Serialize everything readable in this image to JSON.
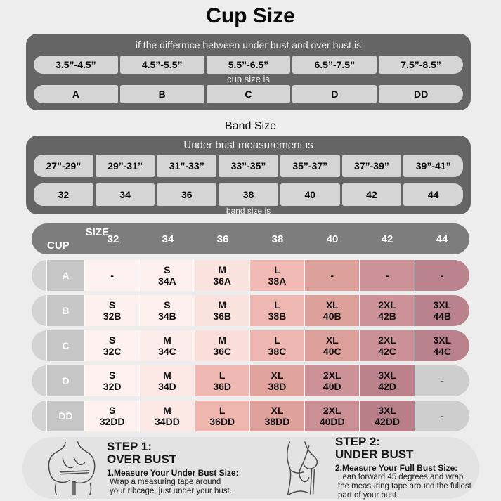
{
  "title": "Cup Size",
  "colors": {
    "page_bg": "#ededed",
    "container_bg": "#656565",
    "matrix_header_bg": "#7d7d7d",
    "light_cell_bg": "#d5d5d5",
    "row_label_bg": "#c6c6c6",
    "row_cap_bg": "#d3d3d3",
    "panel_bg": "#e3e3e3"
  },
  "cup_table": {
    "header": "if the differmce between under bust and over bust is",
    "ranges": [
      "3.5”-4.5”",
      "4.5”-5.5”",
      "5.5”-6.5”",
      "6.5”-7.5”",
      "7.5”-8.5”"
    ],
    "mid_label": "cup size is",
    "cups": [
      "A",
      "B",
      "C",
      "D",
      "DD"
    ]
  },
  "band_table": {
    "title": "Band Size",
    "header": "Under bust measurement is",
    "ranges": [
      "27”-29”",
      "29”-31”",
      "31”-33”",
      "33”-35”",
      "35”-37”",
      "37”-39”",
      "39”-41”"
    ],
    "bands": [
      "32",
      "34",
      "36",
      "38",
      "40",
      "42",
      "44"
    ],
    "footer": "band size is"
  },
  "matrix": {
    "corner_top": "SIZE",
    "corner_bottom": "CUP",
    "columns": [
      "32",
      "34",
      "36",
      "38",
      "40",
      "42",
      "44"
    ],
    "rows": [
      {
        "cup": "A",
        "cells": [
          {
            "label": "-",
            "code": "",
            "bg": "#fdf2f1"
          },
          {
            "label": "S",
            "code": "34A",
            "bg": "#fdefed"
          },
          {
            "label": "M",
            "code": "36A",
            "bg": "#fae2de"
          },
          {
            "label": "L",
            "code": "38A",
            "bg": "#f0b9b3"
          },
          {
            "label": "-",
            "code": "",
            "bg": "#dca09b"
          },
          {
            "label": "-",
            "code": "",
            "bg": "#cc9298"
          },
          {
            "label": "-",
            "code": "",
            "bg": "#bb838d"
          }
        ]
      },
      {
        "cup": "B",
        "cells": [
          {
            "label": "S",
            "code": "32B",
            "bg": "#fdf1ef"
          },
          {
            "label": "S",
            "code": "34B",
            "bg": "#fdefec"
          },
          {
            "label": "M",
            "code": "36B",
            "bg": "#fae2de"
          },
          {
            "label": "L",
            "code": "38B",
            "bg": "#efb8b2"
          },
          {
            "label": "XL",
            "code": "40B",
            "bg": "#dca09b"
          },
          {
            "label": "2XL",
            "code": "42B",
            "bg": "#cc9298"
          },
          {
            "label": "3XL",
            "code": "44B",
            "bg": "#b9828c"
          }
        ]
      },
      {
        "cup": "C",
        "cells": [
          {
            "label": "S",
            "code": "32C",
            "bg": "#fdf2f0"
          },
          {
            "label": "M",
            "code": "34C",
            "bg": "#fcedea"
          },
          {
            "label": "M",
            "code": "36C",
            "bg": "#f9ded9"
          },
          {
            "label": "L",
            "code": "38C",
            "bg": "#efb7b1"
          },
          {
            "label": "XL",
            "code": "40C",
            "bg": "#dc9f9a"
          },
          {
            "label": "2XL",
            "code": "42C",
            "bg": "#cb9197"
          },
          {
            "label": "3XL",
            "code": "44C",
            "bg": "#b9818b"
          }
        ]
      },
      {
        "cup": "D",
        "cells": [
          {
            "label": "S",
            "code": "32D",
            "bg": "#fdf2f0"
          },
          {
            "label": "M",
            "code": "34D",
            "bg": "#fbe7e3"
          },
          {
            "label": "L",
            "code": "36D",
            "bg": "#f0b8b2"
          },
          {
            "label": "XL",
            "code": "38D",
            "bg": "#e0a29d"
          },
          {
            "label": "2XL",
            "code": "40D",
            "bg": "#cd9298"
          },
          {
            "label": "3XL",
            "code": "42D",
            "bg": "#bb828c"
          },
          {
            "label": "-",
            "code": "",
            "bg": "#cecece"
          }
        ]
      },
      {
        "cup": "DD",
        "cells": [
          {
            "label": "S",
            "code": "32DD",
            "bg": "#fdf2f0"
          },
          {
            "label": "M",
            "code": "34DD",
            "bg": "#fbe7e3"
          },
          {
            "label": "L",
            "code": "36DD",
            "bg": "#efb6b0"
          },
          {
            "label": "XL",
            "code": "38DD",
            "bg": "#dfa19c"
          },
          {
            "label": "2XL",
            "code": "40DD",
            "bg": "#cb9096"
          },
          {
            "label": "3XL",
            "code": "42DD",
            "bg": "#b87f89"
          },
          {
            "label": "-",
            "code": "",
            "bg": "#cecece"
          }
        ]
      }
    ]
  },
  "steps": [
    {
      "step": "STEP 1:",
      "area": "OVER BUST",
      "heading": "1.Measure Your Under Bust Size:",
      "lines": [
        "Wrap a measuring tape around",
        "your ribcage, just under your bust."
      ]
    },
    {
      "step": "STEP 2:",
      "area": "UNDER BUST",
      "heading": "2.Measure Your Full Bust Size:",
      "lines": [
        "Lean forward 45 degrees and wrap",
        "the measuring tape around the fullest",
        "part of your bust."
      ]
    }
  ],
  "chart_data": [
    {
      "type": "table",
      "title": "Cup Size",
      "categories": [
        "3.5”-4.5”",
        "4.5”-5.5”",
        "5.5”-6.5”",
        "6.5”-7.5”",
        "7.5”-8.5”"
      ],
      "values": [
        "A",
        "B",
        "C",
        "D",
        "DD"
      ]
    },
    {
      "type": "table",
      "title": "Band Size",
      "categories": [
        "27”-29”",
        "29”-31”",
        "31”-33”",
        "33”-35”",
        "35”-37”",
        "37”-39”",
        "39”-41”"
      ],
      "values": [
        "32",
        "34",
        "36",
        "38",
        "40",
        "42",
        "44"
      ]
    },
    {
      "type": "table",
      "title": "Size / Cup matrix",
      "columns": [
        "32",
        "34",
        "36",
        "38",
        "40",
        "42",
        "44"
      ],
      "rows": [
        {
          "cup": "A",
          "values": [
            "-",
            "S 34A",
            "M 36A",
            "L 38A",
            "-",
            "-",
            "-"
          ]
        },
        {
          "cup": "B",
          "values": [
            "S 32B",
            "S 34B",
            "M 36B",
            "L 38B",
            "XL 40B",
            "2XL 42B",
            "3XL 44B"
          ]
        },
        {
          "cup": "C",
          "values": [
            "S 32C",
            "M 34C",
            "M 36C",
            "L 38C",
            "XL 40C",
            "2XL 42C",
            "3XL 44C"
          ]
        },
        {
          "cup": "D",
          "values": [
            "S 32D",
            "M 34D",
            "L 36D",
            "XL 38D",
            "2XL 40D",
            "3XL 42D",
            "-"
          ]
        },
        {
          "cup": "DD",
          "values": [
            "S 32DD",
            "M 34DD",
            "L 36DD",
            "XL 38DD",
            "2XL 40DD",
            "3XL 42DD",
            "-"
          ]
        }
      ]
    }
  ]
}
